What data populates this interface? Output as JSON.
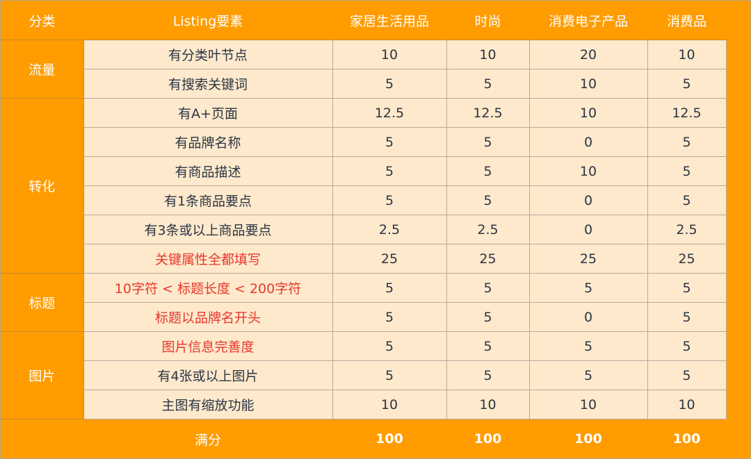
{
  "headers": [
    "分类",
    "Listing要素",
    "家居生活用品",
    "时尚",
    "消费电子产品",
    "消费品"
  ],
  "groups": [
    {
      "category": "流量",
      "rows": [
        {
          "item": "有分类叶节点",
          "values": [
            "10",
            "10",
            "20",
            "10"
          ],
          "highlight": false
        },
        {
          "item": "有搜索关键词",
          "values": [
            "5",
            "5",
            "10",
            "5"
          ],
          "highlight": false
        }
      ]
    },
    {
      "category": "转化",
      "rows": [
        {
          "item": "有A+页面",
          "values": [
            "12.5",
            "12.5",
            "10",
            "12.5"
          ],
          "highlight": false
        },
        {
          "item": "有品牌名称",
          "values": [
            "5",
            "5",
            "0",
            "5"
          ],
          "highlight": false
        },
        {
          "item": "有商品描述",
          "values": [
            "5",
            "5",
            "10",
            "5"
          ],
          "highlight": false
        },
        {
          "item": "有1条商品要点",
          "values": [
            "5",
            "5",
            "0",
            "5"
          ],
          "highlight": false
        },
        {
          "item": "有3条或以上商品要点",
          "values": [
            "2.5",
            "2.5",
            "0",
            "2.5"
          ],
          "highlight": false
        },
        {
          "item": "关键属性全都填写",
          "values": [
            "25",
            "25",
            "25",
            "25"
          ],
          "highlight": true
        }
      ]
    },
    {
      "category": "标题",
      "rows": [
        {
          "item": "10字符 < 标题长度 < 200字符",
          "values": [
            "5",
            "5",
            "5",
            "5"
          ],
          "highlight": true
        },
        {
          "item": "标题以品牌名开头",
          "values": [
            "5",
            "5",
            "0",
            "5"
          ],
          "highlight": true
        }
      ]
    },
    {
      "category": "图片",
      "rows": [
        {
          "item": "图片信息完善度",
          "values": [
            "5",
            "5",
            "5",
            "5"
          ],
          "highlight": true
        },
        {
          "item": "有4张或以上图片",
          "values": [
            "5",
            "5",
            "5",
            "5"
          ],
          "highlight": false
        },
        {
          "item": "主图有缩放功能",
          "values": [
            "10",
            "10",
            "10",
            "10"
          ],
          "highlight": false
        }
      ]
    }
  ],
  "footer": {
    "label": "满分",
    "values": [
      "100",
      "100",
      "100",
      "100"
    ]
  },
  "colors": {
    "header_bg": "#ff9c00",
    "cell_bg": "#fee9cc",
    "highlight_text": "#e8372c",
    "text": "#2b3544"
  }
}
